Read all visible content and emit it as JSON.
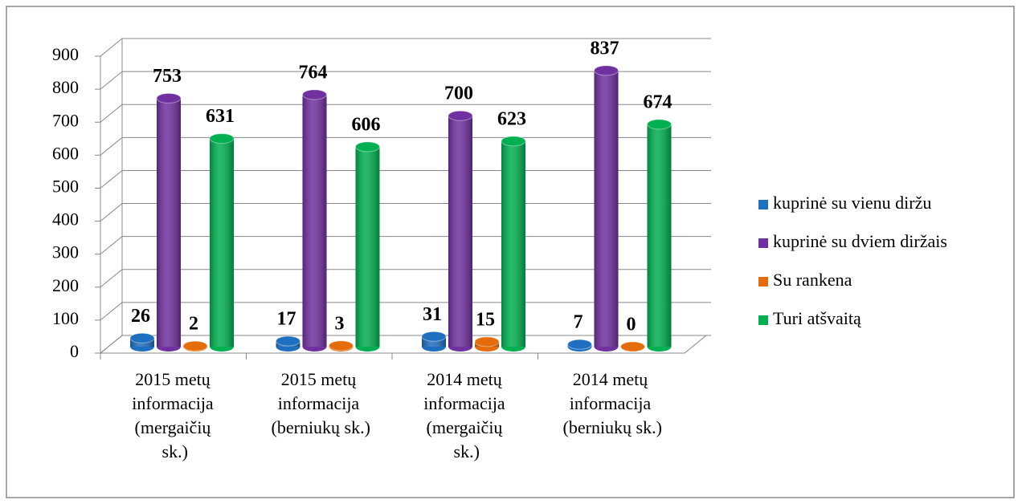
{
  "chart_data": {
    "type": "bar3d",
    "categories": [
      "2015 metų informacija (mergaičių sk.)",
      "2015 metų informacija (berniukų sk.)",
      "2014 metų informacija (mergaičių sk.)",
      "2014 metų informacija (berniukų sk.)"
    ],
    "series": [
      {
        "name": "kuprinė su vienu diržu",
        "color": "#1f6fc0",
        "values": [
          26,
          17,
          31,
          7
        ]
      },
      {
        "name": "kuprinė su dviem diržais",
        "color": "#7030a0",
        "values": [
          753,
          764,
          700,
          837
        ]
      },
      {
        "name": "Su rankena",
        "color": "#e46c0a",
        "values": [
          2,
          3,
          15,
          0
        ]
      },
      {
        "name": "Turi atšvaitą",
        "color": "#00b050",
        "values": [
          631,
          606,
          623,
          674
        ]
      }
    ],
    "ylim": [
      0,
      900
    ],
    "yticks": [
      0,
      100,
      200,
      300,
      400,
      500,
      600,
      700,
      800,
      900
    ],
    "grid": true,
    "legend": "right"
  }
}
